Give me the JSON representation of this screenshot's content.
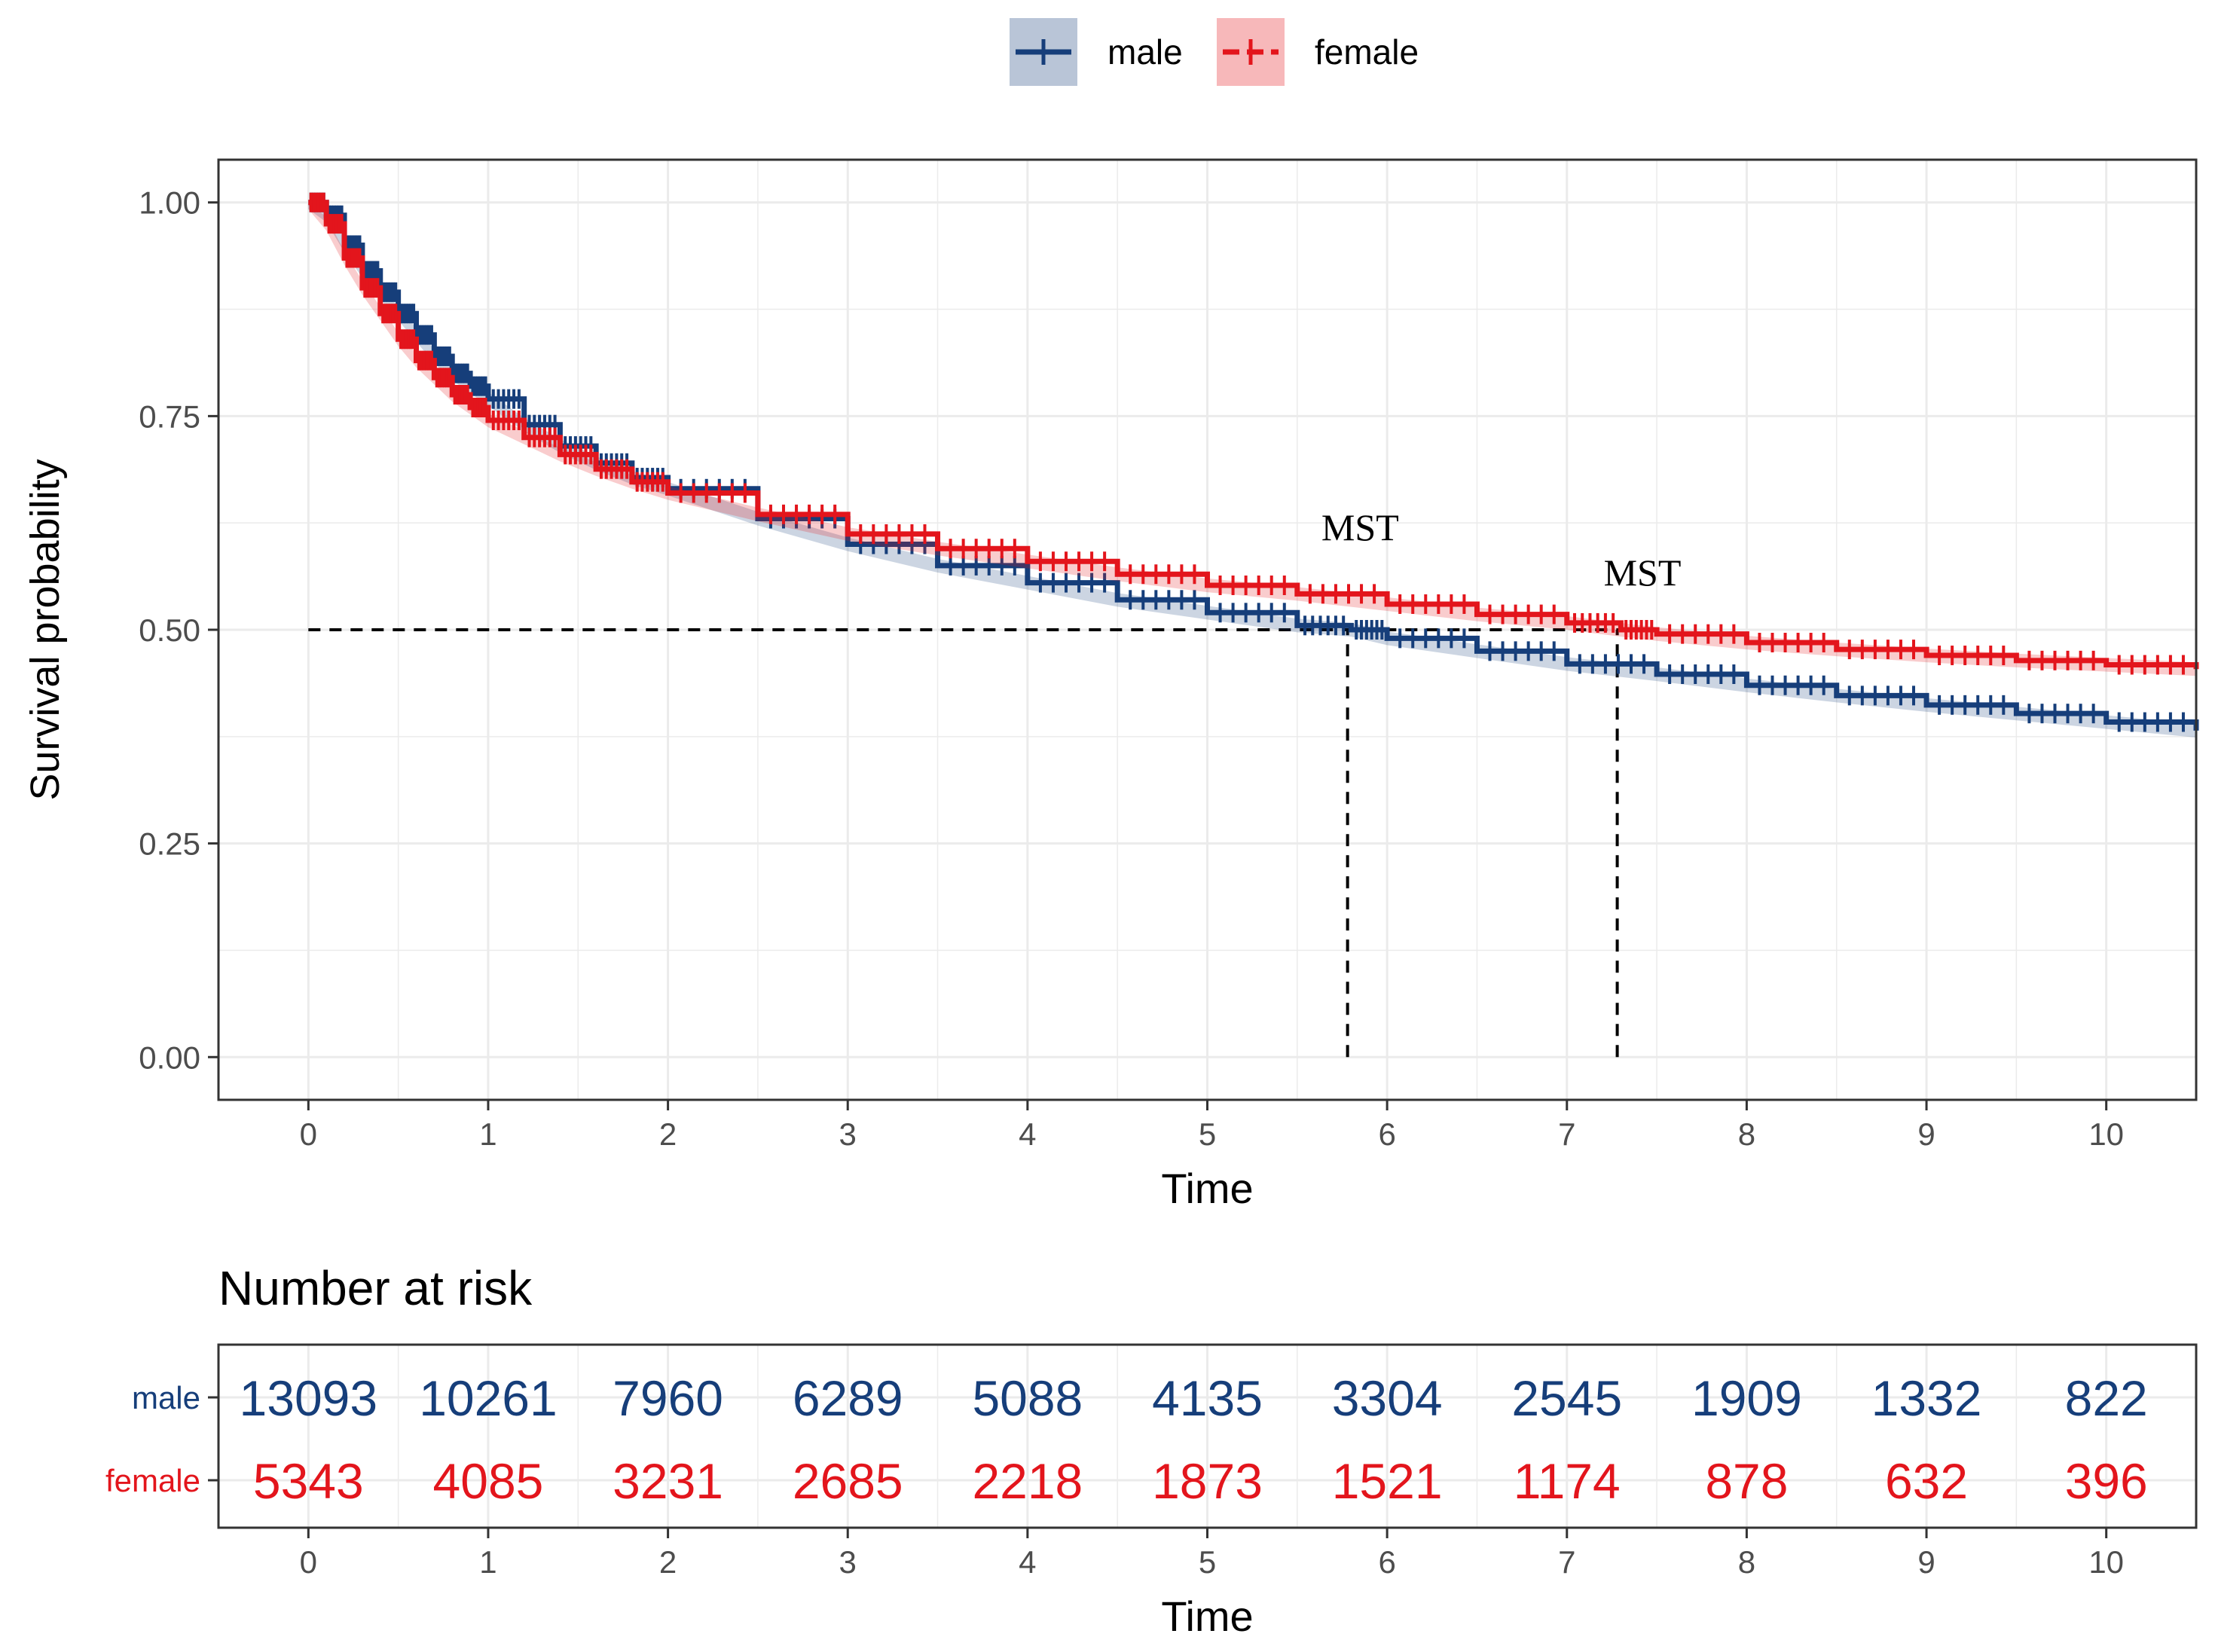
{
  "chart_data": [
    {
      "type": "line",
      "subtype": "kaplan-meier survival",
      "title": "",
      "xlabel": "Time",
      "ylabel": "Survival probability",
      "xlim": [
        -0.5,
        10.5
      ],
      "ylim": [
        -0.05,
        1.05
      ],
      "xticks": [
        "0",
        "1",
        "2",
        "3",
        "4",
        "5",
        "6",
        "7",
        "8",
        "9",
        "10"
      ],
      "yticks": [
        "0.00",
        "0.25",
        "0.50",
        "0.75",
        "1.00"
      ],
      "grid": true,
      "legend": {
        "placement": "top-center",
        "entries": [
          "male",
          "female"
        ]
      },
      "series": [
        {
          "name": "male",
          "color": "#163e7a",
          "x": [
            0,
            0.1,
            0.2,
            0.3,
            0.4,
            0.5,
            0.6,
            0.7,
            0.8,
            0.9,
            1.0,
            1.2,
            1.4,
            1.6,
            1.8,
            2.0,
            2.5,
            3.0,
            3.5,
            4.0,
            4.5,
            5.0,
            5.5,
            5.8,
            6.0,
            6.5,
            7.0,
            7.5,
            8.0,
            8.5,
            9.0,
            9.5,
            10.0,
            10.5
          ],
          "y": [
            1.0,
            0.985,
            0.95,
            0.92,
            0.895,
            0.87,
            0.845,
            0.82,
            0.8,
            0.785,
            0.77,
            0.74,
            0.715,
            0.695,
            0.678,
            0.665,
            0.63,
            0.6,
            0.575,
            0.555,
            0.535,
            0.52,
            0.505,
            0.5,
            0.49,
            0.475,
            0.46,
            0.448,
            0.435,
            0.423,
            0.412,
            0.402,
            0.392,
            0.382
          ]
        },
        {
          "name": "female",
          "color": "#e3151c",
          "x": [
            0,
            0.1,
            0.2,
            0.3,
            0.4,
            0.5,
            0.6,
            0.7,
            0.8,
            0.9,
            1.0,
            1.2,
            1.4,
            1.6,
            1.8,
            2.0,
            2.5,
            3.0,
            3.5,
            4.0,
            4.5,
            5.0,
            5.5,
            6.0,
            6.5,
            7.0,
            7.3,
            7.5,
            8.0,
            8.5,
            9.0,
            9.5,
            10.0,
            10.5
          ],
          "y": [
            1.0,
            0.975,
            0.935,
            0.9,
            0.87,
            0.84,
            0.815,
            0.795,
            0.775,
            0.76,
            0.745,
            0.725,
            0.705,
            0.688,
            0.673,
            0.66,
            0.635,
            0.612,
            0.595,
            0.58,
            0.565,
            0.552,
            0.542,
            0.53,
            0.518,
            0.508,
            0.5,
            0.495,
            0.485,
            0.477,
            0.47,
            0.464,
            0.459,
            0.454
          ]
        }
      ],
      "reference_lines": [
        {
          "kind": "horizontal",
          "y": 0.5,
          "x_from": 0,
          "x_to": 7.3
        },
        {
          "kind": "vertical",
          "x": 5.78,
          "y_from": 0,
          "y_to": 0.5
        },
        {
          "kind": "vertical",
          "x": 7.28,
          "y_from": 0,
          "y_to": 0.5
        }
      ],
      "annotations": [
        {
          "text": "MST",
          "x": 5.85,
          "y": 0.605
        },
        {
          "text": "MST",
          "x": 7.42,
          "y": 0.552
        }
      ]
    },
    {
      "type": "table",
      "title": "Number at risk",
      "xlabel": "Time",
      "xticks": [
        "0",
        "1",
        "2",
        "3",
        "4",
        "5",
        "6",
        "7",
        "8",
        "9",
        "10"
      ],
      "rows": [
        {
          "name": "male",
          "color": "#163e7a",
          "values": [
            "13093",
            "10261",
            "7960",
            "6289",
            "5088",
            "4135",
            "3304",
            "2545",
            "1909",
            "1332",
            "822"
          ]
        },
        {
          "name": "female",
          "color": "#e3151c",
          "values": [
            "5343",
            "4085",
            "3231",
            "2685",
            "2218",
            "1873",
            "1521",
            "1174",
            "878",
            "632",
            "396"
          ]
        }
      ]
    }
  ]
}
